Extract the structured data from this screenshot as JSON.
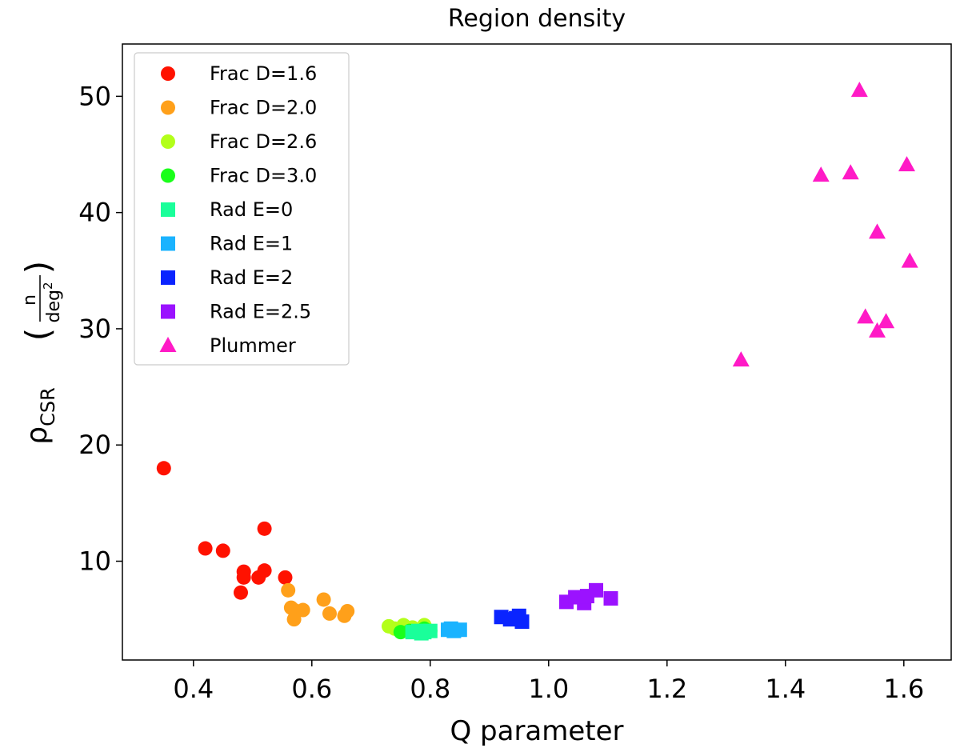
{
  "chart_data": {
    "type": "scatter",
    "title": "Region density",
    "xlabel": "Q parameter",
    "ylabel": {
      "symbol": "ρ",
      "subscript": "CSR",
      "numerator": "n",
      "denominator": "deg",
      "exponent": "2"
    },
    "xlim": [
      0.28,
      1.68
    ],
    "ylim": [
      1.5,
      54.5
    ],
    "xticks": [
      0.4,
      0.6,
      0.8,
      1.0,
      1.2,
      1.4,
      1.6
    ],
    "xtick_labels": [
      "0.4",
      "0.6",
      "0.8",
      "1.0",
      "1.2",
      "1.4",
      "1.6"
    ],
    "yticks": [
      10,
      20,
      30,
      40,
      50
    ],
    "ytick_labels": [
      "10",
      "20",
      "30",
      "40",
      "50"
    ],
    "grid": false,
    "legend_position": "top-left",
    "series": [
      {
        "name": "Frac D=1.6",
        "color": "#ff1200",
        "marker": "circle",
        "points": [
          [
            0.35,
            18.0
          ],
          [
            0.42,
            11.1
          ],
          [
            0.45,
            10.9
          ],
          [
            0.52,
            12.8
          ],
          [
            0.485,
            9.1
          ],
          [
            0.485,
            8.6
          ],
          [
            0.48,
            7.3
          ],
          [
            0.51,
            8.6
          ],
          [
            0.52,
            9.2
          ],
          [
            0.555,
            8.6
          ]
        ]
      },
      {
        "name": "Frac D=2.0",
        "color": "#ffa01a",
        "marker": "circle",
        "points": [
          [
            0.56,
            7.5
          ],
          [
            0.565,
            6.0
          ],
          [
            0.57,
            5.8
          ],
          [
            0.57,
            5.0
          ],
          [
            0.585,
            5.8
          ],
          [
            0.62,
            6.7
          ],
          [
            0.63,
            5.5
          ],
          [
            0.655,
            5.3
          ],
          [
            0.66,
            5.7
          ]
        ]
      },
      {
        "name": "Frac D=2.6",
        "color": "#b3ff1a",
        "marker": "circle",
        "points": [
          [
            0.73,
            4.4
          ],
          [
            0.74,
            4.2
          ],
          [
            0.755,
            4.5
          ],
          [
            0.77,
            4.3
          ],
          [
            0.79,
            4.5
          ],
          [
            0.76,
            4.1
          ]
        ]
      },
      {
        "name": "Frac D=3.0",
        "color": "#1aff1a",
        "marker": "circle",
        "points": [
          [
            0.75,
            3.9
          ],
          [
            0.765,
            4.0
          ],
          [
            0.78,
            3.9
          ],
          [
            0.79,
            4.2
          ],
          [
            0.8,
            4.0
          ]
        ]
      },
      {
        "name": "Rad E=0",
        "color": "#1aff9a",
        "marker": "square",
        "points": [
          [
            0.77,
            3.9
          ],
          [
            0.78,
            4.0
          ],
          [
            0.79,
            3.9
          ],
          [
            0.8,
            4.0
          ],
          [
            0.785,
            3.8
          ]
        ]
      },
      {
        "name": "Rad E=1",
        "color": "#1ab3ff",
        "marker": "square",
        "points": [
          [
            0.83,
            4.1
          ],
          [
            0.84,
            4.0
          ],
          [
            0.85,
            4.1
          ],
          [
            0.835,
            4.2
          ]
        ]
      },
      {
        "name": "Rad E=2",
        "color": "#0a24ff",
        "marker": "square",
        "points": [
          [
            0.92,
            5.2
          ],
          [
            0.935,
            5.0
          ],
          [
            0.95,
            5.3
          ],
          [
            0.955,
            4.8
          ],
          [
            0.945,
            5.1
          ]
        ]
      },
      {
        "name": "Rad E=2.5",
        "color": "#9b12ff",
        "marker": "square",
        "points": [
          [
            1.03,
            6.5
          ],
          [
            1.045,
            6.9
          ],
          [
            1.06,
            6.4
          ],
          [
            1.065,
            7.0
          ],
          [
            1.08,
            7.5
          ],
          [
            1.105,
            6.8
          ]
        ]
      },
      {
        "name": "Plummer",
        "color": "#ff1ac6",
        "marker": "triangle",
        "points": [
          [
            1.525,
            50.5
          ],
          [
            1.46,
            43.2
          ],
          [
            1.51,
            43.4
          ],
          [
            1.605,
            44.1
          ],
          [
            1.555,
            38.3
          ],
          [
            1.61,
            35.8
          ],
          [
            1.535,
            31.0
          ],
          [
            1.57,
            30.6
          ],
          [
            1.555,
            29.8
          ],
          [
            1.325,
            27.3
          ]
        ]
      }
    ]
  }
}
